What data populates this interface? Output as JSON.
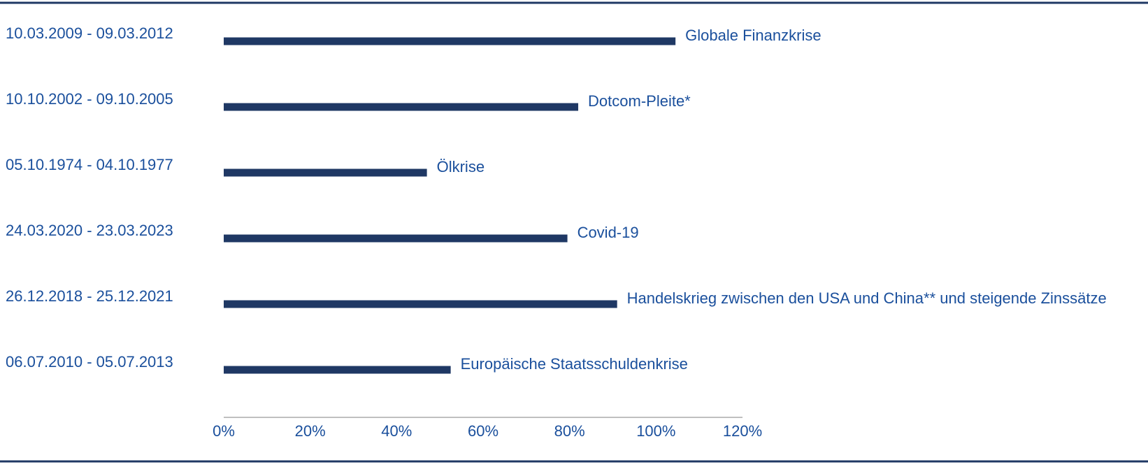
{
  "chart_data": {
    "type": "bar",
    "orientation": "horizontal",
    "categories": [
      "10.03.2009 - 09.03.2012",
      "10.10.2002 - 09.10.2005",
      "05.10.1974 - 04.10.1977",
      "24.03.2020 - 23.03.2023",
      "26.12.2018 - 25.12.2021",
      "06.07.2010 - 05.07.2013"
    ],
    "bar_labels": [
      "Globale Finanzkrise",
      "Dotcom-Pleite*",
      "Ölkrise",
      "Covid-19",
      "Handelskrieg zwischen den USA und China** und steigende Zinssätze",
      "Europäische Staatsschuldenkrise"
    ],
    "values": [
      104.5,
      82,
      47,
      79.5,
      91,
      52.5
    ],
    "xlim": [
      0,
      120
    ],
    "x_ticks": [
      "0%",
      "20%",
      "40%",
      "60%",
      "80%",
      "100%",
      "120%"
    ],
    "title": "",
    "xlabel": "",
    "ylabel": "",
    "grid": false,
    "bar_color": "#1f3864",
    "text_color": "#1a4f9c"
  }
}
